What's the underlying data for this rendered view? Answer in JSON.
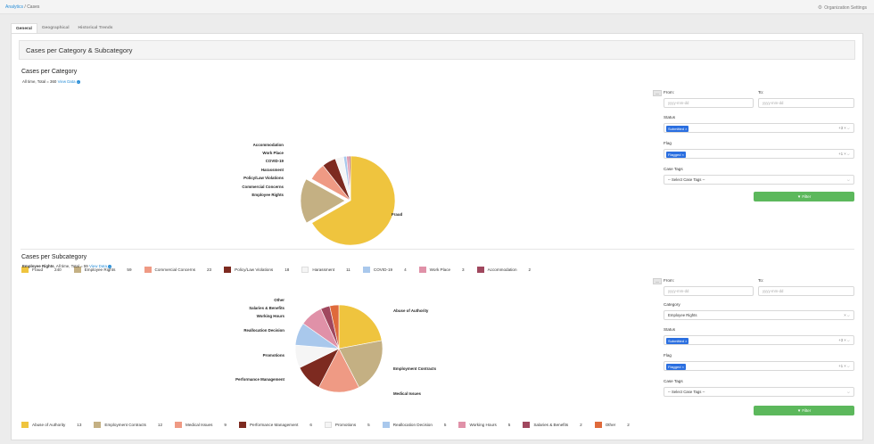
{
  "breadcrumb": {
    "root": "Analytics",
    "sep": "/",
    "current": "Cases"
  },
  "org_settings": "Organization Settings",
  "tabs": [
    {
      "label": "General",
      "active": true
    },
    {
      "label": "Geographical",
      "active": false
    },
    {
      "label": "Historical Trends",
      "active": false
    }
  ],
  "section_title": "Cases per Category & Subcategory",
  "category_card": {
    "title": "Cases per Category",
    "subtitle": "All time, Total = 360",
    "view_data": "View Data",
    "chart_data": {
      "type": "pie",
      "categories": [
        "Fraud",
        "Employee Rights",
        "Commercial Concerns",
        "Policy/Law Violations",
        "Harassment",
        "COVID-19",
        "Work Place",
        "Accommodation"
      ],
      "values": [
        240,
        59,
        23,
        18,
        11,
        4,
        3,
        2
      ],
      "colors": [
        "#efc43e",
        "#c4b083",
        "#ef9a84",
        "#7d2a20",
        "#f5f5f5",
        "#a9c8ec",
        "#e091a8",
        "#a0475e"
      ],
      "legend_position": "bottom"
    }
  },
  "subcategory_card": {
    "title": "Cases per Subcategory",
    "subtitle_bold": "Employee Rights",
    "subtitle": ", All time, Total = 59",
    "view_data": "View Data",
    "chart_data": {
      "type": "pie",
      "categories": [
        "Abuse of Authority",
        "Employment Contracts",
        "Medical Issues",
        "Performance Management",
        "Promotions",
        "Reallocation Decision",
        "Working Hours",
        "Salaries & Benefits",
        "Other"
      ],
      "values": [
        13,
        12,
        9,
        6,
        5,
        5,
        5,
        2,
        2
      ],
      "colors": [
        "#efc43e",
        "#c4b083",
        "#ef9a84",
        "#7d2a20",
        "#f5f5f5",
        "#a9c8ec",
        "#e091a8",
        "#a0475e",
        "#df6a3b"
      ],
      "legend_position": "bottom"
    }
  },
  "filter1": {
    "dash": "—",
    "from_label": "From:",
    "to_label": "To:",
    "from_placeholder": "yyyy-mm-dd",
    "to_placeholder": "yyyy-mm-dd",
    "status_label": "Status",
    "status_chip": "Submitted ×",
    "status_more": "+3 × ⌵",
    "flag_label": "Flag",
    "flag_chip": "Flagged ×",
    "flag_more": "+1 × ⌵",
    "tags_label": "Case Tags",
    "tags_placeholder": "-- Select Case Tags --",
    "tags_caret": "⌵",
    "button": "▼ Filter"
  },
  "filter2": {
    "dash": "—",
    "from_label": "From:",
    "to_label": "To:",
    "from_placeholder": "yyyy-mm-dd",
    "to_placeholder": "yyyy-mm-dd",
    "category_label": "Category",
    "category_value": "Employee Rights",
    "category_ctrl": "× ⌵",
    "status_label": "Status",
    "status_chip": "Submitted ×",
    "status_more": "+3 × ⌵",
    "flag_label": "Flag",
    "flag_chip": "Flagged ×",
    "flag_more": "+1 × ⌵",
    "tags_label": "Case Tags",
    "tags_placeholder": "-- Select Case Tags --",
    "tags_caret": "⌵",
    "button": "▼ Filter"
  }
}
